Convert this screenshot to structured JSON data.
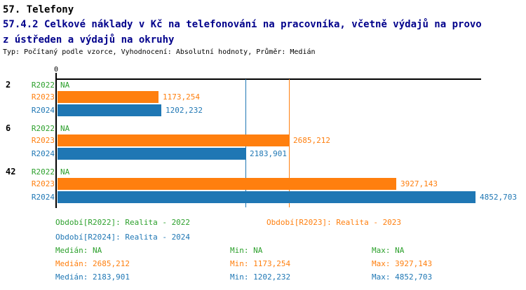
{
  "header": {
    "title": "57. Telefony",
    "subtitle_line1": "57.4.2 Celkové náklady v Kč na telefonování na pracovníka, včetně výdajů na provo",
    "subtitle_line2": "z ústředen a výdajů na okruhy",
    "meta": "Typ: Počítaný podle vzorce, Vyhodnocení: Absolutní hodnoty, Průměr: Medián"
  },
  "colors": {
    "green": "#2CA02C",
    "orange": "#FF7F0E",
    "blue": "#1F77B4",
    "axis": "#000000",
    "subtitle": "#00008B"
  },
  "chart_data": {
    "type": "bar",
    "orientation": "horizontal",
    "title": "57.4.2 Celkové náklady v Kč na telefonování na pracovníka, včetně výdajů na provoz ústředen a výdajů na okruhy",
    "categories": [
      "2",
      "6",
      "42"
    ],
    "x_tick_labels": [
      "0"
    ],
    "xlim": [
      0,
      5430
    ],
    "grid": false,
    "legend_position": "bottom",
    "series": [
      {
        "name": "R2022",
        "color": "#2CA02C",
        "values": [
          null,
          null,
          null
        ],
        "value_labels": [
          "NA",
          "NA",
          "NA"
        ]
      },
      {
        "name": "R2023",
        "color": "#FF7F0E",
        "values": [
          1173.254,
          2685.212,
          3927.143
        ],
        "value_labels": [
          "1173,254",
          "2685,212",
          "3927,143"
        ]
      },
      {
        "name": "R2024",
        "color": "#1F77B4",
        "values": [
          1202.232,
          2183.901,
          4852.703
        ],
        "value_labels": [
          "1202,232",
          "2183,901",
          "4852,703"
        ]
      }
    ],
    "median_lines": [
      {
        "series": "R2023",
        "value": 2685.212,
        "color": "#FF7F0E"
      },
      {
        "series": "R2024",
        "value": 2183.901,
        "color": "#1F77B4"
      }
    ]
  },
  "legend": {
    "items": [
      {
        "label": "Období[R2022]: Realita - 2022",
        "color": "#2CA02C"
      },
      {
        "label": "Období[R2023]: Realita - 2023",
        "color": "#FF7F0E"
      },
      {
        "label": "Období[R2024]: Realita - 2024",
        "color": "#1F77B4"
      }
    ]
  },
  "stats": {
    "rows": [
      {
        "median": "Medián: NA",
        "min": "Min: NA",
        "max": "Max: NA",
        "color": "#2CA02C"
      },
      {
        "median": "Medián: 2685,212",
        "min": "Min: 1173,254",
        "max": "Max: 3927,143",
        "color": "#FF7F0E"
      },
      {
        "median": "Medián: 2183,901",
        "min": "Min: 1202,232",
        "max": "Max: 4852,703",
        "color": "#1F77B4"
      }
    ]
  }
}
